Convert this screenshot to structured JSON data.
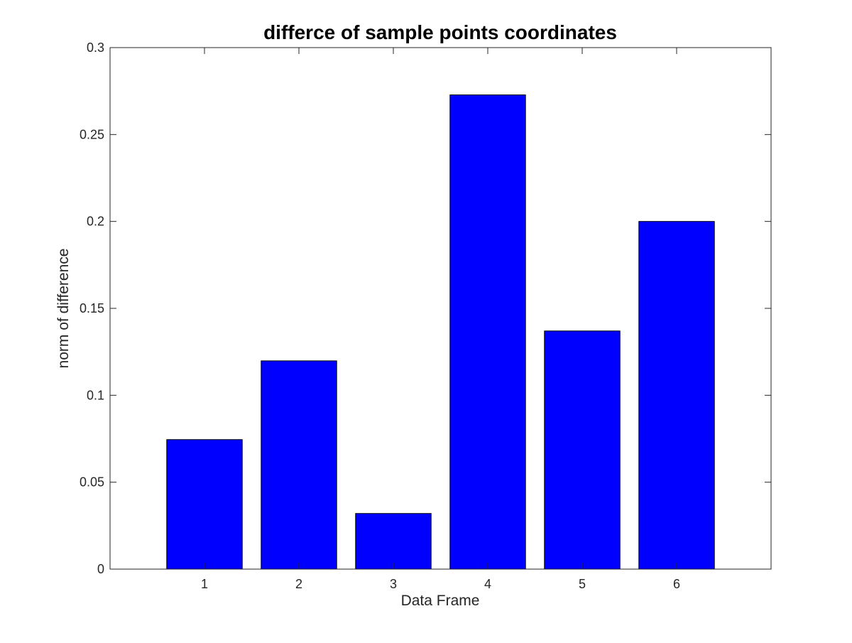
{
  "chart_data": {
    "type": "bar",
    "title": "differce of sample points coordinates",
    "xlabel": "Data Frame",
    "ylabel": "norm of difference",
    "categories": [
      "1",
      "2",
      "3",
      "4",
      "5",
      "6"
    ],
    "values": [
      0.0745,
      0.1198,
      0.032,
      0.2728,
      0.137,
      0.2
    ],
    "ylim": [
      0,
      0.3
    ],
    "xlim": [
      0,
      7
    ],
    "yticks": [
      0,
      0.05,
      0.1,
      0.15,
      0.2,
      0.25,
      0.3
    ],
    "ytick_labels": [
      "0",
      "0.05",
      "0.1",
      "0.15",
      "0.2",
      "0.25",
      "0.3"
    ],
    "bar_color": "#0000ff",
    "bar_edge_color": "#000000",
    "grid": false,
    "legend": "none",
    "box": true
  }
}
